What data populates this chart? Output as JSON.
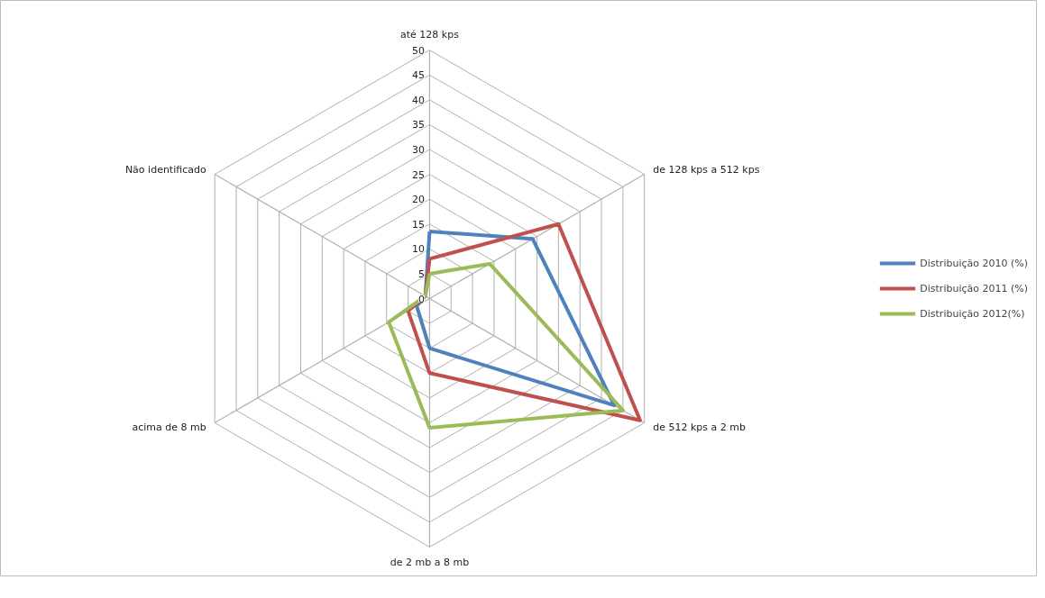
{
  "chart_data": {
    "type": "radar",
    "categories": [
      "até 128 kps",
      "de 128 kps a 512 kps",
      "de 512 kps a 2 mb",
      "de 2 mb a 8 mb",
      "acima de 8 mb",
      "Não identificado"
    ],
    "series": [
      {
        "name": "Distribuição 2010 (%)",
        "color": "#4f81bd",
        "values": [
          13.5,
          24,
          43,
          10,
          3,
          1
        ]
      },
      {
        "name": "Distribuição 2011 (%)",
        "color": "#c0504d",
        "values": [
          8,
          30,
          49,
          15,
          5,
          1
        ]
      },
      {
        "name": "Distribuição 2012(%)",
        "color": "#9bbb59",
        "values": [
          5,
          14,
          45,
          26,
          9.5,
          1
        ]
      }
    ],
    "ylim": [
      0,
      50
    ],
    "yticks": [
      0,
      5,
      10,
      15,
      20,
      25,
      30,
      35,
      40,
      45,
      50
    ],
    "grid": true,
    "legend": "right",
    "line_style": "solid"
  }
}
